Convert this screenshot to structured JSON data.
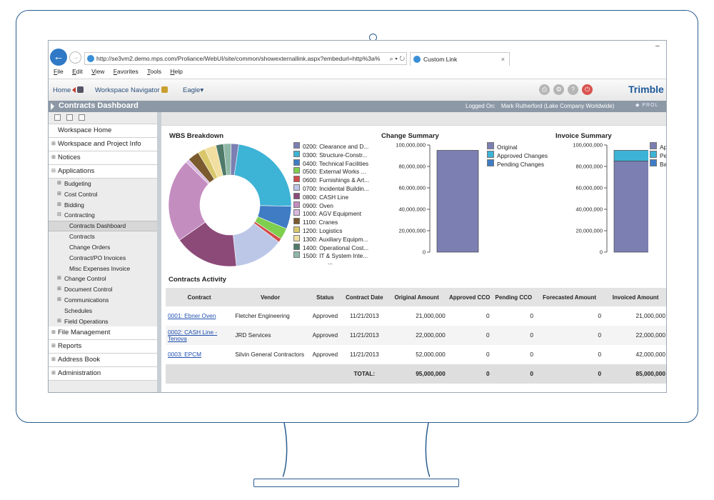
{
  "browser": {
    "url": "http://se3vm2.demo.mps.com/Proliance/WebUI/site/common/showexternallink.aspx?embedurl=http%3a%",
    "tab_title": "Custom Link",
    "tab_close": "×",
    "menu": [
      "File",
      "Edit",
      "View",
      "Favorites",
      "Tools",
      "Help"
    ]
  },
  "header": {
    "home": "Home",
    "workspace_navigator": "Workspace Navigator",
    "project": "Eagle",
    "brand": "Trimble B"
  },
  "titlebar": {
    "title": "Contracts Dashboard",
    "logged_on_label": "Logged On:",
    "user": "Mark Rutherford (Lake Company Worldwide)",
    "product": "PROL"
  },
  "sidebar": {
    "workspace_home": "Workspace Home",
    "workspace_project_info": "Workspace and Project Info",
    "notices": "Notices",
    "applications": "Applications",
    "budgeting": "Budgeting",
    "cost_control": "Cost Control",
    "bidding": "Bidding",
    "contracting": "Contracting",
    "contracts_dashboard": "Contracts Dashboard",
    "contracts": "Contracts",
    "change_orders": "Change Orders",
    "contract_po_invoices": "Contract/PO Invoices",
    "misc_expenses_invoice": "Misc Expenses Invoice",
    "change_control": "Change Control",
    "document_control": "Document Control",
    "communications": "Communications",
    "schedules": "Schedules",
    "field_operations": "Field Operations",
    "file_management": "File Management",
    "reports": "Reports",
    "address_book": "Address Book",
    "administration": "Administration"
  },
  "colors": {
    "original": "#7b7fb2",
    "approved": "#3db3d6",
    "pending": "#3f7cc4"
  },
  "chart_data": [
    {
      "type": "pie",
      "title": "WBS Breakdown",
      "categories": [
        "0200: Clearance and D...",
        "0300: Structure-Constr...",
        "0400: Technical Facilities",
        "0500: External Works ...",
        "0600: Furnishings & Art...",
        "0700: Incidental Buildin...",
        "0800: CASH Line",
        "0900: Oven",
        "1000: AGV Equipment",
        "1100: Cranes",
        "1200: Logistics",
        "1300: Auxiliary Equipm...",
        "1400: Operational Cost...",
        "1500: IT & System Inte..."
      ],
      "values": [
        2,
        23,
        6,
        3,
        1,
        13,
        17,
        22,
        1,
        3,
        2,
        3,
        2,
        2
      ],
      "colors": [
        "#7b7fb2",
        "#3db3d6",
        "#3f7cc4",
        "#7fcf4f",
        "#d24a4a",
        "#bcc7e8",
        "#8c4a78",
        "#c48dc0",
        "#d8b8e0",
        "#7a5a2e",
        "#d9c76a",
        "#f0dfa0",
        "#4f7a6a",
        "#8fb8a8"
      ],
      "legend_more": "..."
    },
    {
      "type": "bar",
      "title": "Change Summary",
      "categories": [
        ""
      ],
      "series": [
        {
          "name": "Original",
          "values": [
            95000000
          ]
        },
        {
          "name": "Approved Changes",
          "values": [
            0
          ]
        },
        {
          "name": "Pending Changes",
          "values": [
            0
          ]
        }
      ],
      "ylim": [
        0,
        100000000
      ],
      "yticks": [
        "100,000,000",
        "80,000,000",
        "60,000,000",
        "40,000,000",
        "20,000,000",
        "0"
      ]
    },
    {
      "type": "bar",
      "title": "Invoice Summary",
      "categories": [
        ""
      ],
      "series": [
        {
          "name": "App",
          "values": [
            85000000
          ]
        },
        {
          "name": "Per",
          "values": [
            10000000
          ]
        },
        {
          "name": "Bal",
          "values": [
            0
          ]
        }
      ],
      "ylim": [
        0,
        100000000
      ],
      "yticks": [
        "100,000,000",
        "80,000,000",
        "60,000,000",
        "40,000,000",
        "20,000,000",
        "0"
      ]
    }
  ],
  "activity": {
    "title": "Contracts Activity",
    "columns": {
      "contract": "Contract",
      "vendor": "Vendor",
      "status": "Status",
      "contract_date": "Contract Date",
      "original_amount": "Original Amount",
      "approved_cco": "Approved CCO",
      "pending_cco": "Pending CCO",
      "forecasted_amount": "Forecasted Amount",
      "invoiced_amount": "Invoiced Amount"
    },
    "rows": [
      {
        "contract": "0001: Ebner Oven",
        "vendor": "Fletcher Engineering",
        "status": "Approved",
        "date": "11/21/2013",
        "original": "21,000,000",
        "approved": "0",
        "pending": "0",
        "forecasted": "0",
        "invoiced": "21,000,000"
      },
      {
        "contract": "0002: CASH Line - Tenova",
        "vendor": "JRD Services",
        "status": "Approved",
        "date": "11/21/2013",
        "original": "22,000,000",
        "approved": "0",
        "pending": "0",
        "forecasted": "0",
        "invoiced": "22,000,000"
      },
      {
        "contract": "0003: EPCM",
        "vendor": "Silvin General Contractors",
        "status": "Approved",
        "date": "11/21/2013",
        "original": "52,000,000",
        "approved": "0",
        "pending": "0",
        "forecasted": "0",
        "invoiced": "42,000,000"
      }
    ],
    "total": {
      "label": "TOTAL:",
      "original": "95,000,000",
      "approved": "0",
      "pending": "0",
      "forecasted": "0",
      "invoiced": "85,000,000"
    }
  }
}
